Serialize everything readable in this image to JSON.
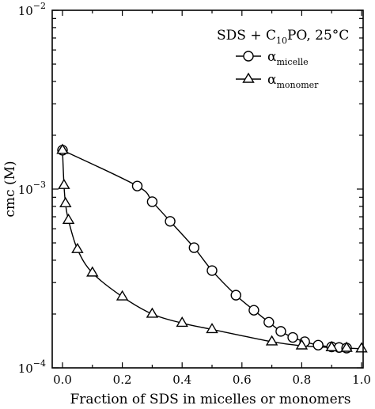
{
  "chart_data": {
    "type": "scatter",
    "title": "",
    "xlabel": "Fraction of SDS in micelles or monomers",
    "ylabel": "cmc (M)",
    "xlim": [
      0.0,
      1.0
    ],
    "ylim": [
      0.0001,
      0.01
    ],
    "yscale": "log",
    "x_ticks": [
      "0.0",
      "0.2",
      "0.4",
      "0.6",
      "0.8",
      "1.0"
    ],
    "y_ticks": [
      {
        "base": "10",
        "exp": "−2",
        "value": 0.01
      },
      {
        "base": "10",
        "exp": "−3",
        "value": 0.001
      },
      {
        "base": "10",
        "exp": "−4",
        "value": 0.0001
      }
    ],
    "legend": {
      "title": {
        "main": "SDS + C",
        "sub": "10",
        "rest": "PO, 25°C"
      },
      "position": "top-right",
      "entries": [
        {
          "symbol": "α",
          "sub": "micelle",
          "marker": "circle"
        },
        {
          "symbol": "α",
          "sub": "monomer",
          "marker": "triangle"
        }
      ]
    },
    "series": [
      {
        "marker": "circle",
        "x": [
          0.0,
          0.25,
          0.3,
          0.36,
          0.44,
          0.5,
          0.58,
          0.64,
          0.69,
          0.73,
          0.77,
          0.81,
          0.855,
          0.9,
          0.925,
          0.95
        ],
        "y": [
          0.00165,
          0.00104,
          0.00085,
          0.00066,
          0.00047,
          0.00035,
          0.000255,
          0.00021,
          0.00018,
          0.00016,
          0.000148,
          0.00014,
          0.000134,
          0.000131,
          0.00013,
          0.000129
        ]
      },
      {
        "marker": "triangle",
        "x": [
          0.0,
          0.005,
          0.01,
          0.02,
          0.05,
          0.1,
          0.2,
          0.3,
          0.4,
          0.5,
          0.7,
          0.8,
          0.9,
          0.95,
          1.0
        ],
        "y": [
          0.00165,
          0.00105,
          0.00083,
          0.00067,
          0.00046,
          0.00034,
          0.00025,
          0.0002,
          0.000178,
          0.000164,
          0.00014,
          0.000133,
          0.00013,
          0.000129,
          0.000128
        ]
      }
    ]
  }
}
